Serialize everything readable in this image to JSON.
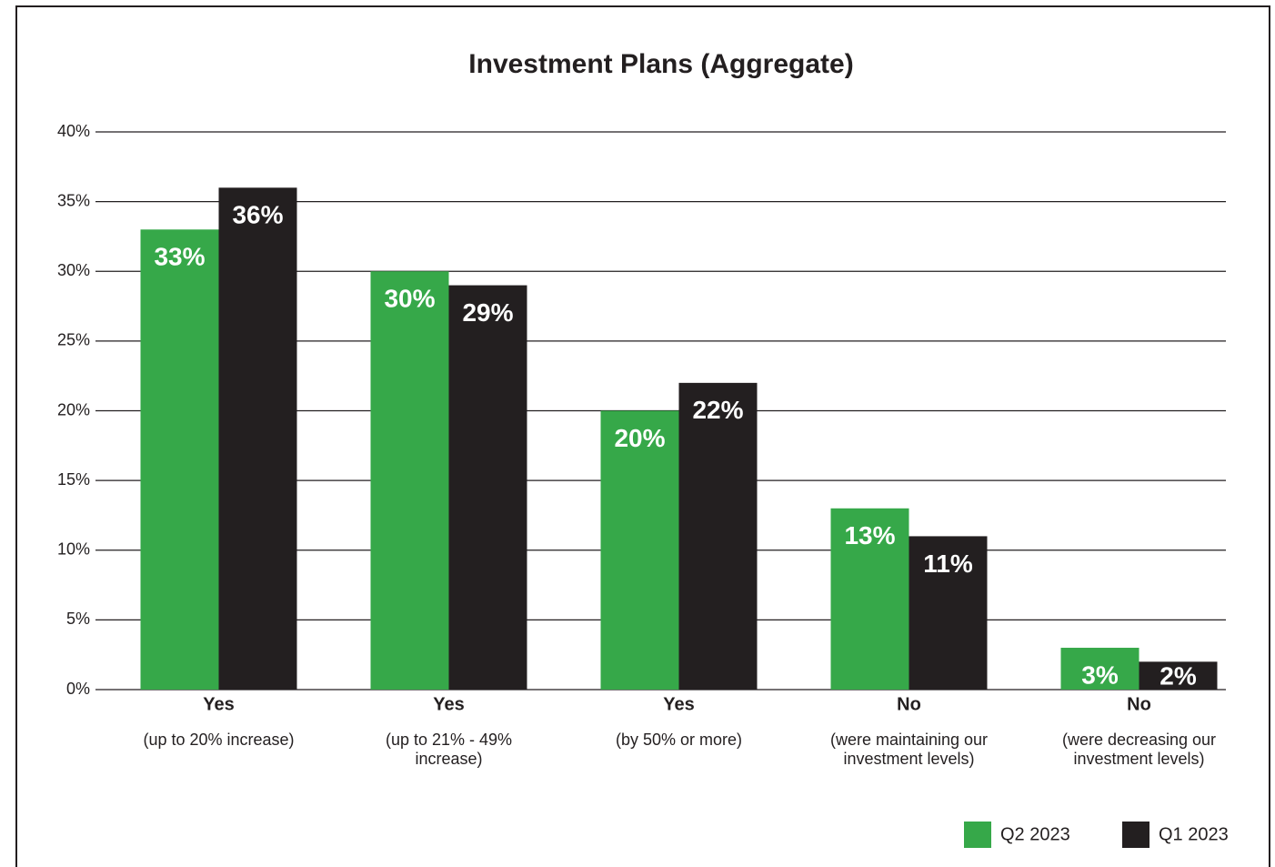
{
  "chart_data": {
    "type": "bar",
    "title": "Investment Plans (Aggregate)",
    "categories": [
      "Yes",
      "Yes",
      "Yes",
      "No",
      "No"
    ],
    "category_notes": [
      "(up to 20% increase)",
      "(up to  21% - 49%\nincrease)",
      "(by 50% or more)",
      "(were maintaining our\ninvestment levels)",
      "(were decreasing our\ninvestment levels)"
    ],
    "series": [
      {
        "name": "Q2 2023",
        "color": "#36a849",
        "values": [
          33,
          30,
          20,
          13,
          3
        ],
        "value_labels": [
          "33%",
          "30%",
          "20%",
          "13%",
          "3%"
        ]
      },
      {
        "name": "Q1 2023",
        "color": "#231f20",
        "values": [
          36,
          29,
          22,
          11,
          2
        ],
        "value_labels": [
          "36%",
          "29%",
          "22%",
          "11%",
          "2%"
        ]
      }
    ],
    "ylim": [
      0,
      40
    ],
    "yticks": [
      {
        "value": 0,
        "label": "0%"
      },
      {
        "value": 5,
        "label": "5%"
      },
      {
        "value": 10,
        "label": "10%"
      },
      {
        "value": 15,
        "label": "15%"
      },
      {
        "value": 20,
        "label": "20%"
      },
      {
        "value": 25,
        "label": "25%"
      },
      {
        "value": 30,
        "label": "30%"
      },
      {
        "value": 35,
        "label": "35%"
      },
      {
        "value": 40,
        "label": "40%"
      }
    ],
    "grid": true,
    "legend": "bottom-right"
  }
}
